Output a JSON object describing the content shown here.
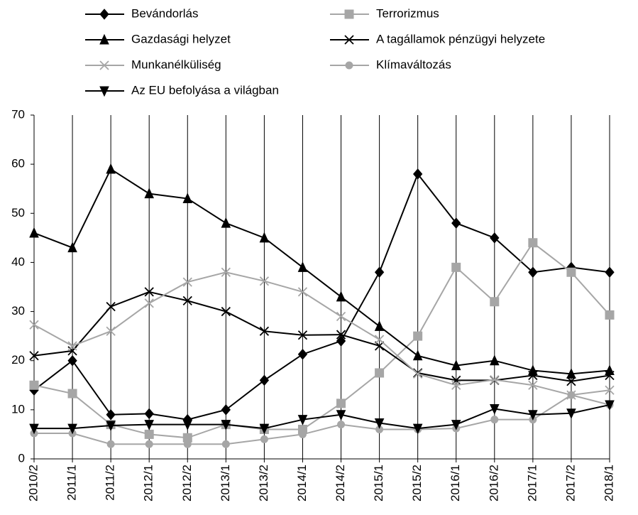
{
  "chart_data": {
    "type": "line",
    "categories": [
      "2010/2",
      "2011/1",
      "2011/2",
      "2012/1",
      "2012/2",
      "2013/1",
      "2013/2",
      "2014/1",
      "2014/2",
      "2015/1",
      "2015/2",
      "2016/1",
      "2016/2",
      "2017/1",
      "2017/2",
      "2018/1"
    ],
    "ylim": [
      0,
      70
    ],
    "yticks": [
      0,
      10,
      20,
      30,
      40,
      50,
      60,
      70
    ],
    "grid": "x",
    "series": [
      {
        "name": "Bevándorlás",
        "color": "#000000",
        "marker": "diamond",
        "values": [
          14,
          20,
          9,
          9.2,
          8,
          10,
          16,
          21.3,
          24,
          38,
          58,
          48,
          45,
          38,
          39,
          38
        ]
      },
      {
        "name": "Terrorizmus",
        "color": "#a6a6a6",
        "marker": "square",
        "values": [
          15,
          13.3,
          7,
          5,
          4.3,
          7,
          6,
          6,
          11.3,
          17.5,
          25,
          39,
          32,
          44,
          38,
          29.3
        ]
      },
      {
        "name": "Gazdasági helyzet",
        "color": "#000000",
        "marker": "triangle",
        "values": [
          46,
          43,
          59,
          54,
          53,
          48,
          45,
          39,
          33,
          27,
          21,
          19,
          20,
          18,
          17.3,
          18
        ]
      },
      {
        "name": "A tagállamok pénzügyi helyzete",
        "color": "#000000",
        "marker": "x",
        "values": [
          21,
          22,
          31,
          34,
          32.2,
          30,
          26,
          25.2,
          25.3,
          23,
          17.5,
          16,
          16,
          17,
          15.8,
          17
        ]
      },
      {
        "name": "Munkanélküliség",
        "color": "#a6a6a6",
        "marker": "x",
        "values": [
          27.3,
          23,
          26,
          31.7,
          36,
          38,
          36.2,
          34,
          29,
          24.3,
          17.3,
          15,
          16.1,
          15,
          13,
          14
        ]
      },
      {
        "name": "Klímaváltozás",
        "color": "#a6a6a6",
        "marker": "circle",
        "values": [
          5.2,
          5.2,
          3,
          3,
          3,
          3,
          4,
          5,
          7,
          6,
          6,
          6.2,
          8,
          8,
          13,
          11
        ]
      },
      {
        "name": "Az EU befolyása a világban",
        "color": "#000000",
        "marker": "triangle-down",
        "values": [
          6.2,
          6.2,
          6.8,
          7,
          7,
          7,
          6.2,
          8,
          9,
          7.3,
          6.2,
          7,
          10.2,
          9,
          9.3,
          11
        ]
      }
    ]
  }
}
